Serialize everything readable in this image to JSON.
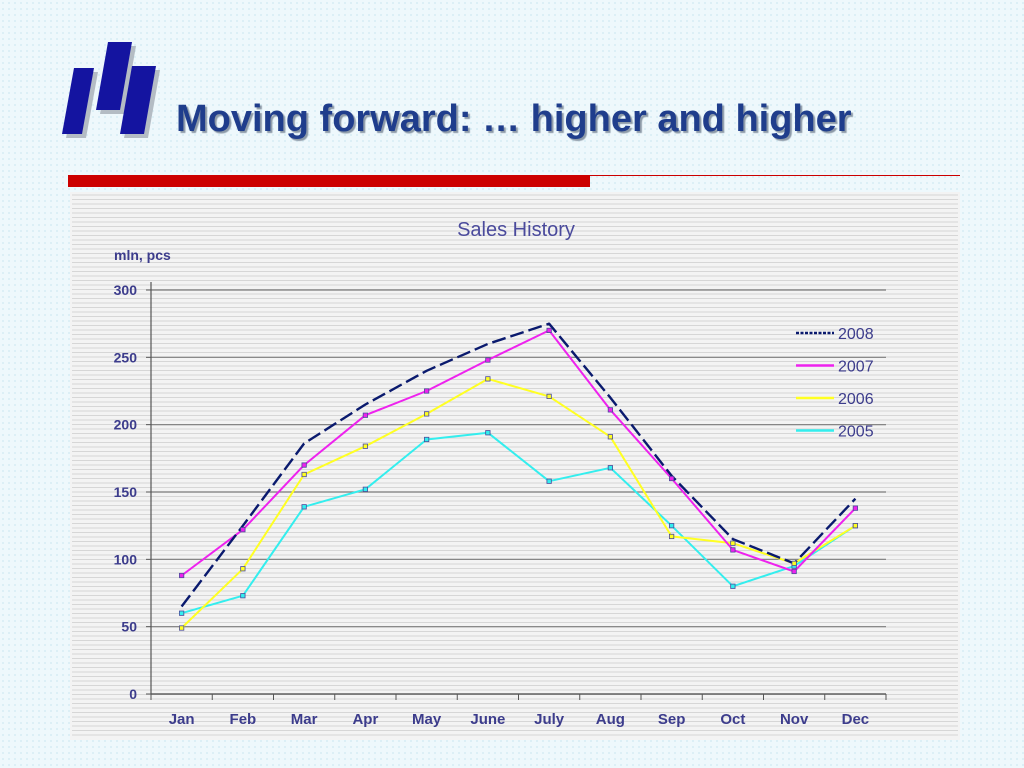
{
  "slide": {
    "title": "Moving forward: … higher and higher",
    "colors": {
      "title": "#1f3d8c",
      "logo": "#1414a0",
      "accent_rule": "#cc0000",
      "axis_text": "#3c3c8c"
    }
  },
  "chart_data": {
    "type": "line",
    "title": "Sales History",
    "ylabel": "mln, pcs",
    "xlabel": "",
    "categories": [
      "Jan",
      "Feb",
      "Mar",
      "Apr",
      "May",
      "June",
      "July",
      "Aug",
      "Sep",
      "Oct",
      "Nov",
      "Dec"
    ],
    "ylim": [
      0,
      300
    ],
    "yticks": [
      0,
      50,
      100,
      150,
      200,
      250,
      300
    ],
    "grid": true,
    "legend": "right",
    "series": [
      {
        "name": "2008",
        "color": "#0a1a6e",
        "style": "dashed",
        "values": [
          65,
          125,
          186,
          215,
          240,
          260,
          275,
          220,
          162,
          115,
          97,
          145
        ]
      },
      {
        "name": "2007",
        "color": "#ee22ee",
        "style": "solid",
        "values": [
          88,
          122,
          170,
          207,
          225,
          248,
          270,
          211,
          160,
          107,
          91,
          138
        ]
      },
      {
        "name": "2006",
        "color": "#ffff22",
        "style": "solid",
        "values": [
          49,
          93,
          163,
          184,
          208,
          234,
          221,
          191,
          117,
          112,
          97,
          125
        ]
      },
      {
        "name": "2005",
        "color": "#33eeee",
        "style": "solid",
        "values": [
          60,
          73,
          139,
          152,
          189,
          194,
          158,
          168,
          125,
          80,
          95,
          125
        ]
      }
    ]
  }
}
